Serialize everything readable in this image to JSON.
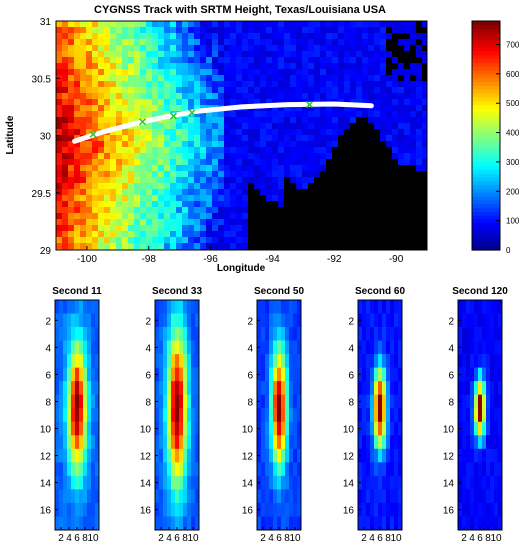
{
  "chart_data": [
    {
      "type": "heatmap",
      "title": "CYGNSS Track with SRTM Height, Texas/Louisiana USA",
      "xlabel": "Longitude",
      "ylabel": "Latitude",
      "xlim": [
        -101,
        -89
      ],
      "ylim": [
        29,
        31
      ],
      "xticks": [
        -100,
        -98,
        -96,
        -94,
        -92,
        -90
      ],
      "yticks": [
        29,
        29.5,
        30,
        30.5,
        31
      ],
      "xtick_labels": [
        "-100",
        "-98",
        "-96",
        "-94",
        "-92",
        "-90"
      ],
      "ytick_labels": [
        "29",
        "29.5",
        "30",
        "30.5",
        "31"
      ],
      "colorbar": {
        "range": [
          0,
          780
        ],
        "ticks": [
          0,
          100,
          200,
          300,
          400,
          500,
          600,
          700
        ],
        "tick_labels": [
          "0",
          "100",
          "200",
          "300",
          "400",
          "500",
          "600",
          "700"
        ],
        "colormap": "jet"
      },
      "track": {
        "color": "#ffffff",
        "points": [
          [
            -100.4,
            29.95
          ],
          [
            -99.5,
            30.03
          ],
          [
            -98.5,
            30.1
          ],
          [
            -97.5,
            30.16
          ],
          [
            -96.5,
            30.21
          ],
          [
            -95,
            30.25
          ],
          [
            -93.5,
            30.27
          ],
          [
            -92,
            30.275
          ],
          [
            -90.8,
            30.26
          ]
        ],
        "markers": [
          [
            -99.8,
            30.01
          ],
          [
            -98.2,
            30.12
          ],
          [
            -97.2,
            30.17
          ],
          [
            -96.6,
            30.2
          ],
          [
            -92.8,
            30.27
          ]
        ],
        "marker_color": "#22cc22"
      },
      "land_color_scale": "elevation in metres (jet colormap)",
      "water_color": "#000000"
    },
    {
      "type": "heatmap",
      "panels": [
        {
          "title": "Second 11",
          "peak": 1.0,
          "center_y": 8.5,
          "spread_y": 3.2,
          "spread_x": 1.6,
          "background": 0.22
        },
        {
          "title": "Second 33",
          "peak": 1.0,
          "center_y": 8.5,
          "spread_y": 4.0,
          "spread_x": 1.7,
          "background": 0.2
        },
        {
          "title": "Second 50",
          "peak": 1.0,
          "center_y": 8.5,
          "spread_y": 3.0,
          "spread_x": 1.3,
          "background": 0.18
        },
        {
          "title": "Second 60",
          "peak": 1.0,
          "center_y": 8.5,
          "spread_y": 2.0,
          "spread_x": 1.1,
          "background": 0.14
        },
        {
          "title": "Second 120",
          "peak": 1.0,
          "center_y": 8.5,
          "spread_y": 1.5,
          "spread_x": 0.9,
          "background": 0.12
        }
      ],
      "grid_size": {
        "x": 11,
        "y": 17
      },
      "yticks": [
        2,
        4,
        6,
        8,
        10,
        12,
        14,
        16
      ],
      "ytick_labels": [
        "2",
        "4",
        "6",
        "8",
        "10",
        "12",
        "14",
        "16"
      ],
      "xticks": [
        2,
        4,
        6,
        8,
        10
      ],
      "xtick_labels": [
        "2",
        "4",
        "6",
        "8",
        "10"
      ],
      "colormap": "jet"
    }
  ]
}
